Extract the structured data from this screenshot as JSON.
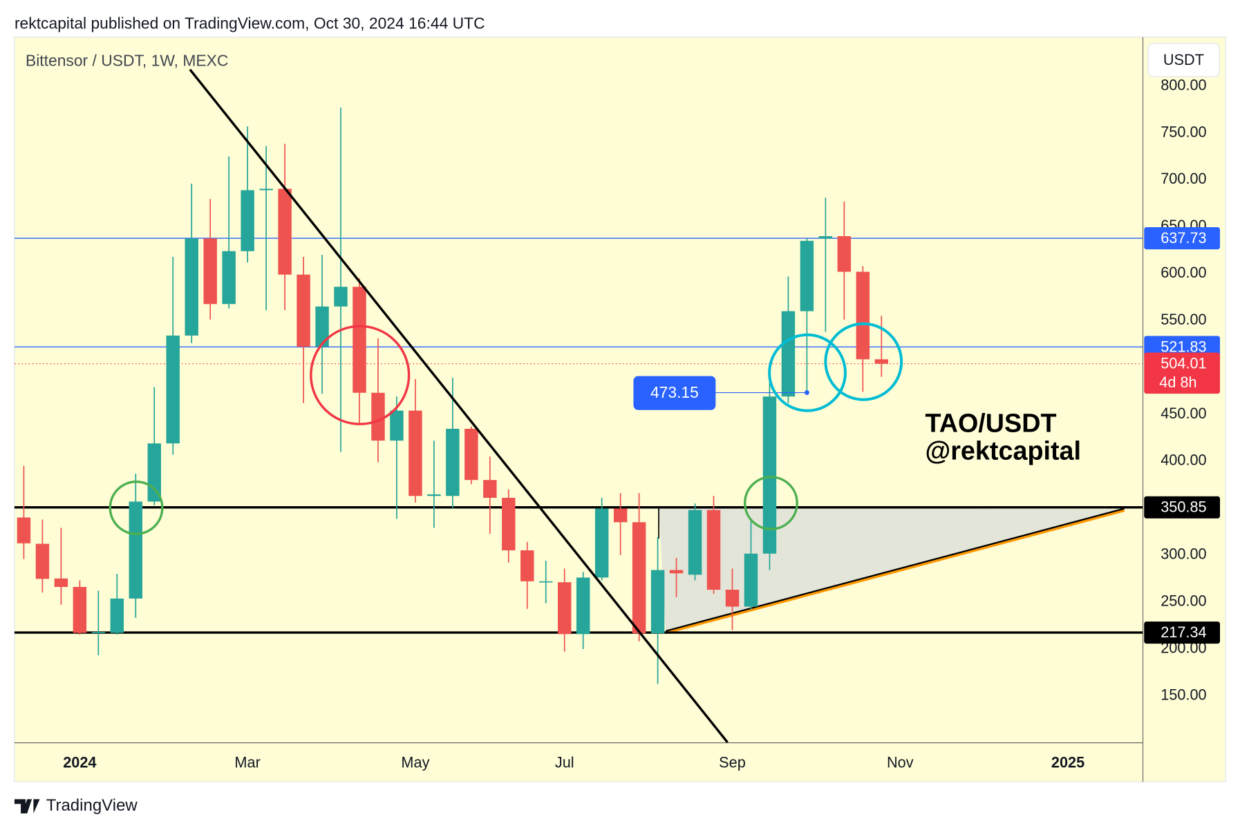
{
  "header": "rektcapital published on TradingView.com, Oct 30, 2024 16:44 UTC",
  "logo": "TradingView",
  "chart_data": {
    "type": "candlestick",
    "title": "Bittensor / USDT, 1W, MEXC",
    "currency": "USDT",
    "watermark": [
      "TAO/USDT",
      "@rektcapital"
    ],
    "up_color": "#26a69a",
    "down_color": "#ef5350",
    "x": [
      0,
      1,
      2,
      3,
      4,
      5,
      6,
      7,
      8,
      9,
      10,
      11,
      12,
      13,
      14,
      15,
      16,
      17,
      18,
      19,
      20,
      21,
      22,
      23,
      24,
      25,
      26,
      27,
      28,
      29,
      30,
      31,
      32,
      33,
      34,
      35,
      36,
      37,
      38,
      39,
      40,
      41,
      42,
      43,
      44,
      45,
      46
    ],
    "open": [
      340,
      312,
      275,
      266,
      217,
      217,
      253.6,
      357,
      419,
      534,
      637.5,
      567.6,
      624,
      689,
      690.5,
      599,
      522,
      565,
      586,
      473,
      422,
      454,
      363,
      363,
      434.6,
      380,
      361,
      305,
      272,
      271,
      215.7,
      276,
      349.5,
      335,
      216.5,
      284,
      279,
      348,
      263,
      245,
      301.5,
      469,
      560,
      637.5,
      640,
      602,
      508.7
    ],
    "high": [
      395,
      337.8,
      329,
      273,
      262,
      280,
      386.6,
      479,
      618,
      696,
      679.6,
      725,
      757,
      736,
      738.5,
      618,
      620,
      777,
      595,
      531,
      469,
      487.6,
      422,
      489,
      437,
      405,
      370,
      314,
      294,
      285.6,
      282,
      361,
      366,
      366,
      319,
      297,
      355,
      363,
      285.6,
      336,
      487.6,
      597,
      637.5,
      681,
      677,
      608,
      555
    ],
    "low": [
      295.7,
      260,
      247,
      215,
      193,
      215,
      233,
      353,
      407,
      526,
      551,
      563,
      612,
      561,
      561,
      462,
      472,
      410,
      441,
      399,
      338.6,
      356,
      329,
      350,
      375.6,
      322.6,
      292,
      242.6,
      248.5,
      197,
      199.7,
      273,
      300,
      208,
      162.6,
      255,
      273,
      258.6,
      220,
      241.8,
      284,
      462,
      473.15,
      538,
      551,
      474,
      490
    ],
    "close": [
      312.5,
      274.6,
      266,
      217,
      218,
      253.6,
      357,
      419,
      534,
      637.5,
      567.6,
      624,
      689,
      690.5,
      599,
      522,
      565,
      586,
      473,
      422,
      454,
      363,
      364.7,
      434.6,
      380,
      361,
      305,
      272,
      272,
      215.7,
      276,
      349.5,
      335,
      216.5,
      284,
      280.5,
      348,
      263,
      245,
      301.5,
      469,
      560,
      635,
      640,
      602,
      508.7,
      504.01
    ],
    "xlim": [
      -0.5,
      60
    ],
    "xticks": [
      {
        "value": 3,
        "label": "2024"
      },
      {
        "value": 12,
        "label": "Mar"
      },
      {
        "value": 21,
        "label": "May"
      },
      {
        "value": 29,
        "label": "Jul"
      },
      {
        "value": 38,
        "label": "Sep"
      },
      {
        "value": 47,
        "label": "Nov"
      },
      {
        "value": 56,
        "label": "2025"
      }
    ],
    "ylim": [
      100.3,
      852.2
    ],
    "yticks": [
      {
        "value": 150,
        "label": "150.00"
      },
      {
        "value": 200,
        "label": "200.00"
      },
      {
        "value": 250,
        "label": "250.00"
      },
      {
        "value": 300,
        "label": "300.00"
      },
      {
        "value": 350,
        "label": "350.00"
      },
      {
        "value": 400,
        "label": "400.00"
      },
      {
        "value": 450,
        "label": "450.00"
      },
      {
        "value": 500,
        "label": "500.00"
      },
      {
        "value": 550,
        "label": "550.00"
      },
      {
        "value": 600,
        "label": "600.00"
      },
      {
        "value": 650,
        "label": "650.00"
      },
      {
        "value": 700,
        "label": "700.00"
      },
      {
        "value": 750,
        "label": "750.00"
      },
      {
        "value": 800,
        "label": "800.00"
      }
    ],
    "price_levels": [
      {
        "value": 637.73,
        "color": "#2962ff"
      },
      {
        "value": 521.83,
        "color": "#2962ff"
      },
      {
        "value": 350.85,
        "color": "#000000"
      },
      {
        "value": 217.34,
        "color": "#000000"
      }
    ],
    "last_price": {
      "value": 504.01,
      "color": "#f23645",
      "countdown": "4d 8h"
    },
    "marker": {
      "value": 473.15,
      "color": "#2962ff"
    }
  }
}
